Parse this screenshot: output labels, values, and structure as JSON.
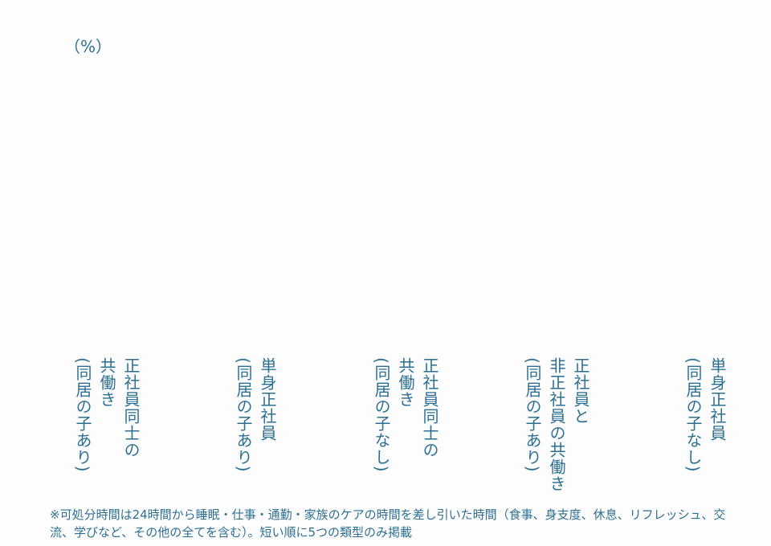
{
  "chart_data": {
    "type": "bar",
    "unit_label": "（%）",
    "categories": [
      "正社員同士の\n共働き\n(同居の子あり)",
      "単身正社員\n(同居の子あり)",
      "正社員同士の\n共働き\n(同居の子なし)",
      "正社員と\n非正社員の共働き\n(同居の子あり)",
      "単身正社員\n(同居の子なし)"
    ],
    "color": "#2d6f92",
    "note": "※可処分時間は24時間から睡眠・仕事・通勤・家族のケアの時間を差し引いた時間（食事、身支度、休息、リフレッシュ、交流、学びなど、その他の全てを含む）。短い順に5つの類型のみ掲載"
  }
}
